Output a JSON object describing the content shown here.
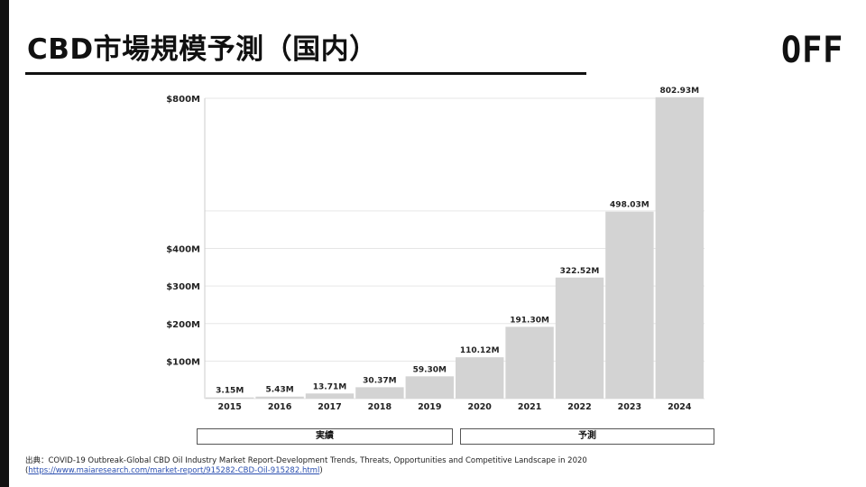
{
  "slide": {
    "title": "CBD市場規模予測（国内）",
    "logo_text": "OFF"
  },
  "chart_data": {
    "type": "bar",
    "title": "",
    "xlabel": "",
    "ylabel": "",
    "categories": [
      "2015",
      "2016",
      "2017",
      "2018",
      "2019",
      "2020",
      "2021",
      "2022",
      "2023",
      "2024"
    ],
    "values": [
      3.15,
      5.43,
      13.71,
      30.37,
      59.3,
      110.12,
      191.3,
      322.52,
      498.03,
      802.93
    ],
    "value_labels": [
      "3.15M",
      "5.43M",
      "13.71M",
      "30.37M",
      "59.30M",
      "110.12M",
      "191.30M",
      "322.52M",
      "498.03M",
      "802.93M"
    ],
    "y_ticks": [
      100,
      200,
      300,
      400,
      800
    ],
    "y_tick_labels": [
      "$100M",
      "$200M",
      "$300M",
      "$400M",
      "$800M"
    ],
    "ylim": [
      0,
      800
    ],
    "grid": true,
    "bar_color": "#d3d3d3",
    "grid_color": "#e6e6e6",
    "groups": [
      {
        "label": "実績",
        "from": "2015",
        "to": "2019"
      },
      {
        "label": "予測",
        "from": "2020",
        "to": "2024"
      }
    ]
  },
  "source": {
    "line1": "出典：COVID-19 Outbreak-Global CBD Oil Industry Market Report-Development Trends, Threats, Opportunities and Competitive Landscape in 2020",
    "link_open": "(",
    "link_text": "https://www.maiaresearch.com/market-report/915282-CBD-Oil-915282.html",
    "link_close": ")"
  }
}
